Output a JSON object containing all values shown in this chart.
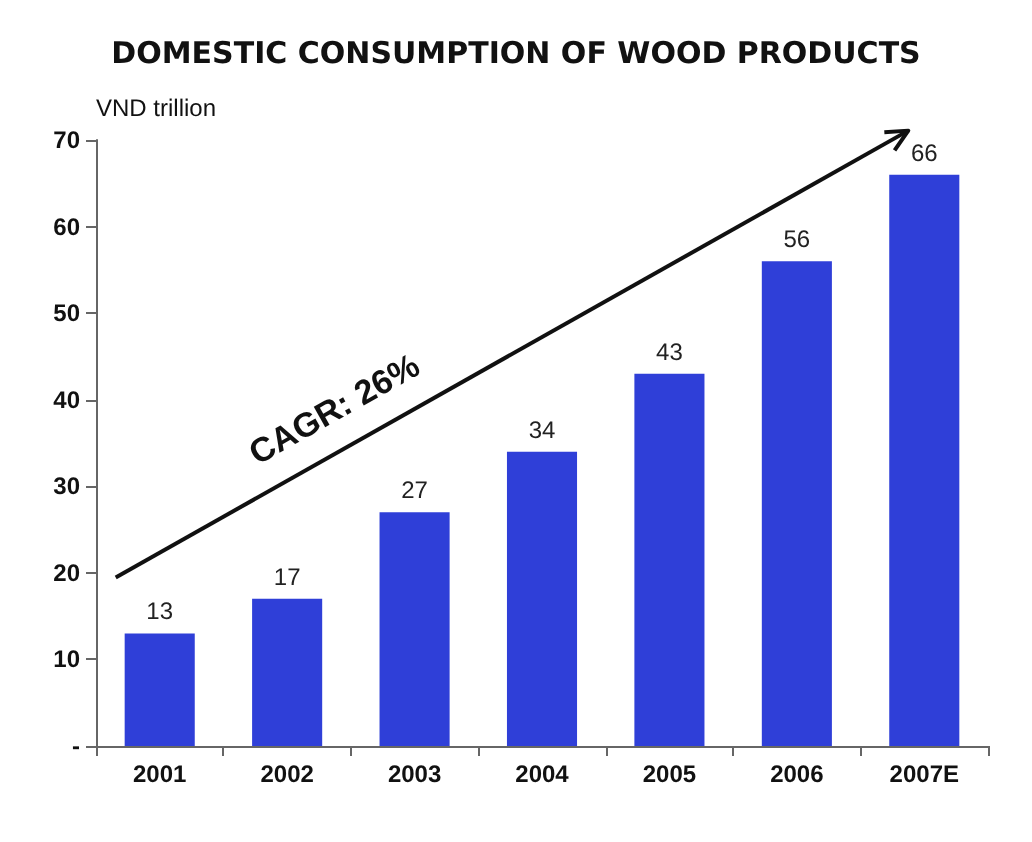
{
  "chart_data": {
    "type": "bar",
    "title": "DOMESTIC CONSUMPTION OF WOOD PRODUCTS",
    "ylabel": "VND trillion",
    "categories": [
      "2001",
      "2002",
      "2003",
      "2004",
      "2005",
      "2006",
      "2007E"
    ],
    "values": [
      13,
      17,
      27,
      34,
      43,
      56,
      66
    ],
    "color": "#2f3fd8",
    "ylim": [
      0,
      70
    ],
    "yticks": [
      {
        "value": 0,
        "label": "-"
      },
      10,
      20,
      30,
      40,
      50,
      60,
      70
    ],
    "data_labels": true,
    "annotations": [
      "CAGR: 26%"
    ]
  }
}
